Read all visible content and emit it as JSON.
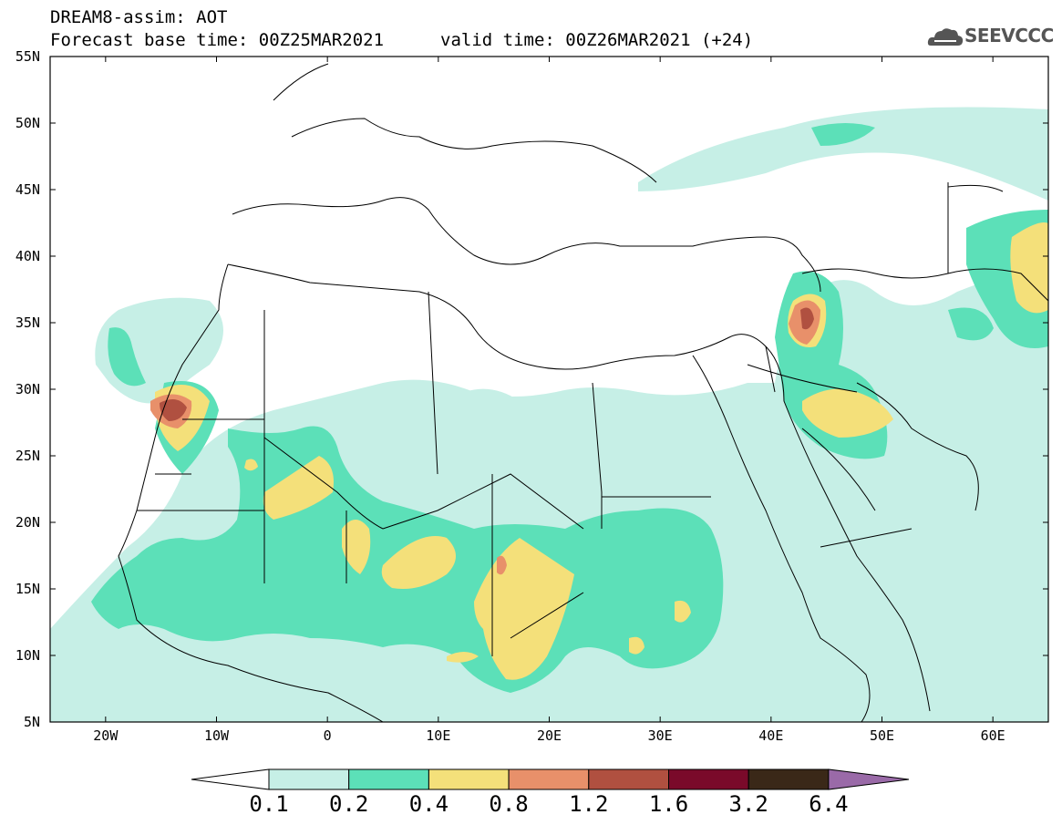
{
  "header": {
    "line1": "DREAM8-assim: AOT",
    "line2": "Forecast base time: 00Z25MAR2021",
    "line3": "valid time: 00Z26MAR2021 (+24)"
  },
  "logo": {
    "text": "SEEVCCC",
    "icon": "cloud-icon"
  },
  "map": {
    "lat_labels": [
      "55N",
      "50N",
      "45N",
      "40N",
      "35N",
      "30N",
      "25N",
      "20N",
      "15N",
      "10N",
      "5N"
    ],
    "lon_labels": [
      "20W",
      "10W",
      "0",
      "10E",
      "20E",
      "30E",
      "40E",
      "50E",
      "60E"
    ],
    "lon_range": [
      -25,
      65
    ],
    "lat_range": [
      5,
      55
    ]
  },
  "colorbar": {
    "labels": [
      "0.1",
      "0.2",
      "0.4",
      "0.8",
      "1.2",
      "1.6",
      "3.2",
      "6.4"
    ],
    "colors": [
      "#ffffff",
      "#c6efe6",
      "#5ce0b8",
      "#f4e07a",
      "#e8906a",
      "#b05040",
      "#7a0a2a",
      "#3a2818",
      "#9a6aa8"
    ]
  },
  "levels": {
    "0.1": "#c6efe6",
    "0.2": "#5ce0b8",
    "0.4": "#f4e07a",
    "0.8": "#e8906a",
    "1.2": "#b05040"
  }
}
